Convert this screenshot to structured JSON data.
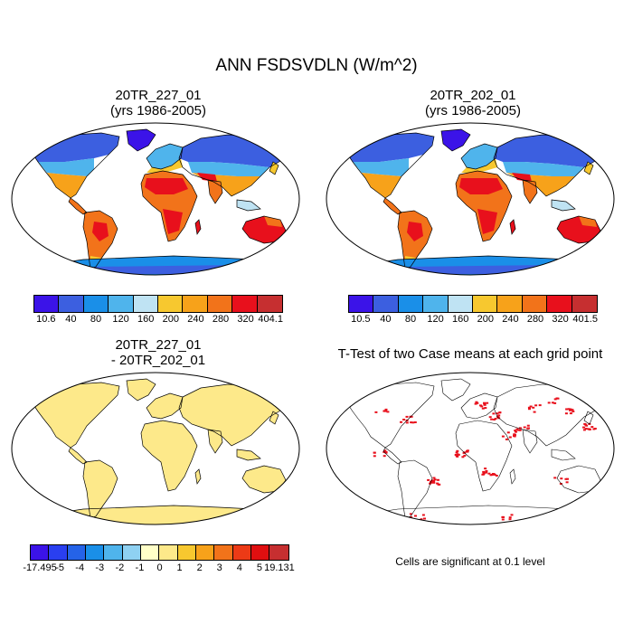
{
  "title": "ANN FSDSVDLN (W/m^2)",
  "panels": {
    "top_left": {
      "line1": "20TR_227_01",
      "line2": "(yrs 1986-2005)"
    },
    "top_right": {
      "line1": "20TR_202_01",
      "line2": "(yrs 1986-2005)"
    },
    "bottom_left": {
      "line1": "20TR_227_01",
      "line2": "- 20TR_202_01"
    },
    "bottom_right": {
      "line1": "T-Test of two Case means at each grid point"
    }
  },
  "colorbars": {
    "top_left": {
      "colors": [
        "#3b13e8",
        "#3c5fe0",
        "#1a8fe8",
        "#4fb4ec",
        "#bfe3f3",
        "#f7c82f",
        "#f7a21a",
        "#f2731a",
        "#e8101c",
        "#c62f30"
      ],
      "labels": [
        "10.6",
        "40",
        "80",
        "120",
        "160",
        "200",
        "240",
        "280",
        "320",
        "404.1"
      ]
    },
    "top_right": {
      "colors": [
        "#3b13e8",
        "#3c5fe0",
        "#1a8fe8",
        "#4fb4ec",
        "#bfe3f3",
        "#f7c82f",
        "#f7a21a",
        "#f2731a",
        "#e8101c",
        "#c62f30"
      ],
      "labels": [
        "10.5",
        "40",
        "80",
        "120",
        "160",
        "200",
        "240",
        "280",
        "320",
        "401.5"
      ]
    },
    "bottom_left": {
      "colors": [
        "#3b13e8",
        "#2a3ff0",
        "#2563e8",
        "#1a8fe8",
        "#4fb4ec",
        "#8fd1f2",
        "#ffffc8",
        "#fde98a",
        "#f7c82f",
        "#f7a21a",
        "#f2731a",
        "#ec3a16",
        "#e00f10",
        "#c62f30"
      ],
      "labels": [
        "-17.495",
        "-5",
        "-4",
        "-3",
        "-2",
        "-1",
        "0",
        "1",
        "2",
        "3",
        "4",
        "5",
        "19.131"
      ]
    }
  },
  "note": "Cells are significant at 0.1 level"
}
